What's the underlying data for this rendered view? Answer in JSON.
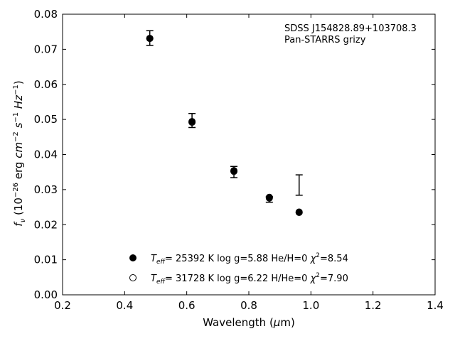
{
  "chart_data": {
    "type": "scatter",
    "xlabel": "Wavelength (μm)",
    "ylabel": "f_ν (10^-26 erg cm^-2 s^-1 Hz^-1)",
    "xlim": [
      0.2,
      1.4
    ],
    "ylim": [
      0.0,
      0.08
    ],
    "x_ticks": [
      0.2,
      0.4,
      0.6,
      0.8,
      1.0,
      1.2,
      1.4
    ],
    "x_tick_labels": [
      "0.2",
      "0.4",
      "0.6",
      "0.8",
      "1.0",
      "1.2",
      "1.4"
    ],
    "y_ticks": [
      0.0,
      0.01,
      0.02,
      0.03,
      0.04,
      0.05,
      0.06,
      0.07,
      0.08
    ],
    "y_tick_labels": [
      "0.00",
      "0.01",
      "0.02",
      "0.03",
      "0.04",
      "0.05",
      "0.06",
      "0.07",
      "0.08"
    ],
    "grid": false,
    "annotation": [
      "SDSS J154828.89+103708.3",
      "Pan-STARRS grizy"
    ],
    "observed": [
      {
        "x": 0.481,
        "y": 0.0732,
        "err": 0.0021
      },
      {
        "x": 0.617,
        "y": 0.0497,
        "err": 0.002
      },
      {
        "x": 0.752,
        "y": 0.035,
        "err": 0.0016
      },
      {
        "x": 0.866,
        "y": 0.0272,
        "err": 0.0008
      },
      {
        "x": 0.962,
        "y": 0.0313,
        "err": 0.0029
      }
    ],
    "series": [
      {
        "name": "T_eff= 25392 K  log g=5.88  He/H=0  χ²=8.54",
        "label_parts": {
          "t": "T",
          "sub": "eff",
          "rest1": "= 25392 K  log g=5.88  He/H=0  ",
          "chi": "χ",
          "sup": "2",
          "rest2": "=8.54"
        },
        "marker": "filled-circle",
        "color": "#000000",
        "x": [
          0.481,
          0.617,
          0.752,
          0.866,
          0.962
        ],
        "y": [
          0.0731,
          0.0494,
          0.0354,
          0.0278,
          0.0236
        ]
      },
      {
        "name": "T_eff= 31728 K  log g=6.22  H/He=0  χ²=7.90",
        "label_parts": {
          "t": "T",
          "sub": "eff",
          "rest1": "= 31728 K  log g=6.22  H/He=0  ",
          "chi": "χ",
          "sup": "2",
          "rest2": "=7.90"
        },
        "marker": "open-circle",
        "color": "#000000",
        "x": [
          0.481,
          0.617,
          0.752,
          0.866,
          0.962
        ],
        "y": [
          0.0731,
          0.0492,
          0.0352,
          0.0276,
          0.0235
        ]
      }
    ]
  }
}
